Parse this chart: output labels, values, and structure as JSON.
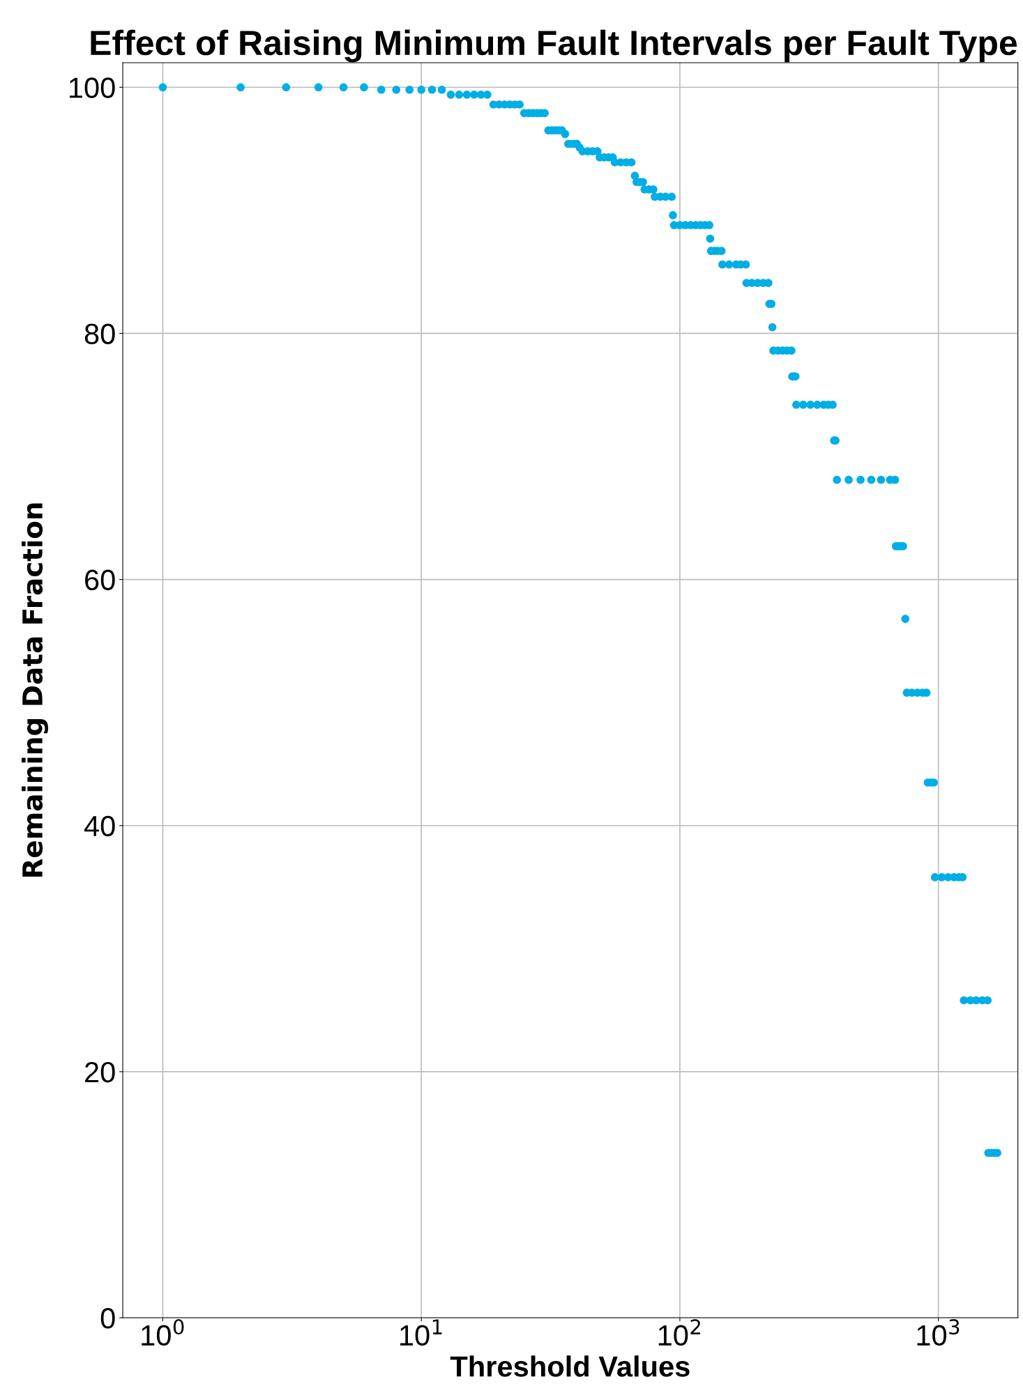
{
  "chart_data": {
    "type": "scatter",
    "title": "Effect of Raising Minimum Fault Intervals per Fault Type",
    "xlabel": "Threshold Values",
    "ylabel": "Remaining Data Fraction",
    "log": "x",
    "grid": true,
    "marker": "circle",
    "xlim": [
      0.7,
      2030
    ],
    "ylim": [
      0,
      102
    ],
    "xticks": [
      {
        "value": 1,
        "label": "10$^{0}$"
      },
      {
        "value": 10,
        "label": "10$^{1}$"
      },
      {
        "value": 100,
        "label": "10$^{2}$"
      },
      {
        "value": 1000,
        "label": "10$^{3}$"
      }
    ],
    "yticks": [
      0,
      20,
      40,
      60,
      80,
      100
    ],
    "series": [
      {
        "color": "#00aee6",
        "x": [
          1,
          2,
          3,
          4,
          5,
          6,
          7,
          8,
          9,
          10,
          11,
          12,
          13,
          14,
          15,
          16,
          17,
          18,
          19,
          20,
          21,
          22,
          23,
          24,
          25,
          26,
          27,
          28,
          29,
          30,
          31,
          32,
          33,
          34,
          35,
          36,
          37,
          38,
          39,
          40,
          41,
          42,
          44,
          46,
          48,
          49,
          51,
          53,
          55,
          56,
          59,
          62,
          65,
          67,
          68,
          70,
          72,
          73,
          76,
          79,
          80,
          84,
          88,
          93,
          94,
          95,
          100,
          105,
          110,
          115,
          120,
          125,
          130,
          131,
          132,
          136,
          140,
          145,
          146,
          155,
          165,
          172,
          180,
          181,
          190,
          200,
          210,
          220,
          222,
          226,
          228,
          230,
          240,
          250,
          260,
          270,
          272,
          276,
          280,
          282,
          300,
          320,
          340,
          360,
          375,
          390,
          395,
          400,
          405,
          450,
          500,
          550,
          600,
          650,
          680,
          685,
          700,
          715,
          730,
          745,
          755,
          790,
          830,
          870,
          900,
          910,
          935,
          960,
          970,
          1030,
          1090,
          1150,
          1200,
          1240,
          1255,
          1330,
          1400,
          1480,
          1550,
          1560,
          1600,
          1650,
          1690
        ],
        "values": [
          100,
          100,
          100,
          100,
          100,
          100,
          99.8,
          99.8,
          99.8,
          99.8,
          99.8,
          99.8,
          99.4,
          99.4,
          99.4,
          99.4,
          99.4,
          99.4,
          98.6,
          98.6,
          98.6,
          98.6,
          98.6,
          98.6,
          97.9,
          97.9,
          97.9,
          97.9,
          97.9,
          97.9,
          96.5,
          96.5,
          96.5,
          96.5,
          96.5,
          96.2,
          95.4,
          95.4,
          95.4,
          95.4,
          95.1,
          94.8,
          94.8,
          94.8,
          94.8,
          94.3,
          94.3,
          94.3,
          94.3,
          93.9,
          93.9,
          93.9,
          93.9,
          92.8,
          92.3,
          92.3,
          92.3,
          91.7,
          91.7,
          91.7,
          91.1,
          91.1,
          91.1,
          91.1,
          89.6,
          88.8,
          88.8,
          88.8,
          88.8,
          88.8,
          88.8,
          88.8,
          88.8,
          87.7,
          86.7,
          86.7,
          86.7,
          86.7,
          85.6,
          85.6,
          85.6,
          85.6,
          85.6,
          84.1,
          84.1,
          84.1,
          84.1,
          84.1,
          82.4,
          82.4,
          80.5,
          78.6,
          78.6,
          78.6,
          78.6,
          78.6,
          76.5,
          76.5,
          76.5,
          74.2,
          74.2,
          74.2,
          74.2,
          74.2,
          74.2,
          74.2,
          71.3,
          71.3,
          68.1,
          68.1,
          68.1,
          68.1,
          68.1,
          68.1,
          68.1,
          62.7,
          62.7,
          62.7,
          62.7,
          56.8,
          50.8,
          50.8,
          50.8,
          50.8,
          50.8,
          43.5,
          43.5,
          43.5,
          35.8,
          35.8,
          35.8,
          35.8,
          35.8,
          35.8,
          25.8,
          25.8,
          25.8,
          25.8,
          25.8,
          13.4,
          13.4,
          13.4,
          13.4
        ]
      }
    ]
  }
}
